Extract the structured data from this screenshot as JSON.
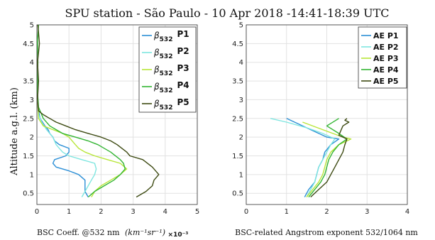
{
  "title": "SPU station - São Paulo - 10 Apr 2018 -14:41-18:39 UTC",
  "ylabel": "Altitude a.g.l.  (km)",
  "colors": {
    "P1": "#2c8fd6",
    "P2": "#7fe6e0",
    "P3": "#b8e639",
    "P4": "#33b533",
    "P5": "#3d4a12"
  },
  "chart_data": [
    {
      "type": "line",
      "xlabel": "BSC Coeff. @532 nm",
      "xlabel_units": "(km⁻¹sr⁻¹)",
      "xlabel_scale": "×10⁻³",
      "xlim": [
        0,
        5
      ],
      "ylim": [
        0.2,
        5
      ],
      "xticks": [
        "0",
        "1",
        "2",
        "3",
        "4",
        "5"
      ],
      "yticks": [
        "0.5",
        "1",
        "1.5",
        "2",
        "2.5",
        "3",
        "3.5",
        "4",
        "4.5",
        "5"
      ],
      "grid": true,
      "legend_position": "top-right",
      "series": [
        {
          "legend_symbol": "β",
          "legend_sub": "532",
          "name": "P1",
          "color_key": "P1",
          "points": [
            [
              1.6,
              0.4
            ],
            [
              1.5,
              0.55
            ],
            [
              1.5,
              0.7
            ],
            [
              1.5,
              0.85
            ],
            [
              1.3,
              1.0
            ],
            [
              1.0,
              1.1
            ],
            [
              0.6,
              1.2
            ],
            [
              0.5,
              1.3
            ],
            [
              0.55,
              1.4
            ],
            [
              0.9,
              1.5
            ],
            [
              1.0,
              1.6
            ],
            [
              1.0,
              1.7
            ],
            [
              0.7,
              1.8
            ],
            [
              0.55,
              1.9
            ],
            [
              0.5,
              2.0
            ],
            [
              0.4,
              2.1
            ],
            [
              0.35,
              2.2
            ],
            [
              0.25,
              2.3
            ],
            [
              0.1,
              2.5
            ],
            [
              0.03,
              2.8
            ],
            [
              0.02,
              3.0
            ]
          ]
        },
        {
          "legend_symbol": "β",
          "legend_sub": "532",
          "name": "P2",
          "color_key": "P2",
          "points": [
            [
              1.4,
              0.4
            ],
            [
              1.5,
              0.55
            ],
            [
              1.6,
              0.7
            ],
            [
              1.7,
              0.85
            ],
            [
              1.8,
              1.0
            ],
            [
              1.85,
              1.15
            ],
            [
              1.8,
              1.3
            ],
            [
              1.4,
              1.4
            ],
            [
              1.0,
              1.5
            ],
            [
              0.8,
              1.6
            ],
            [
              0.7,
              1.7
            ],
            [
              0.6,
              1.8
            ],
            [
              0.5,
              2.0
            ],
            [
              0.4,
              2.1
            ],
            [
              0.3,
              2.2
            ],
            [
              0.15,
              2.4
            ],
            [
              0.05,
              2.6
            ],
            [
              0.02,
              3.0
            ]
          ]
        },
        {
          "legend_symbol": "β",
          "legend_sub": "532",
          "name": "P3",
          "color_key": "P3",
          "points": [
            [
              1.7,
              0.4
            ],
            [
              1.8,
              0.55
            ],
            [
              2.0,
              0.7
            ],
            [
              2.3,
              0.85
            ],
            [
              2.6,
              1.0
            ],
            [
              2.8,
              1.15
            ],
            [
              2.6,
              1.3
            ],
            [
              2.2,
              1.4
            ],
            [
              1.8,
              1.5
            ],
            [
              1.5,
              1.6
            ],
            [
              1.3,
              1.7
            ],
            [
              1.2,
              1.8
            ],
            [
              1.1,
              1.9
            ],
            [
              1.0,
              2.0
            ],
            [
              0.8,
              2.1
            ],
            [
              0.5,
              2.2
            ],
            [
              0.2,
              2.3
            ],
            [
              0.05,
              2.5
            ],
            [
              0.02,
              3.0
            ]
          ]
        },
        {
          "legend_symbol": "β",
          "legend_sub": "532",
          "name": "P4",
          "color_key": "P4",
          "points": [
            [
              1.6,
              0.4
            ],
            [
              1.8,
              0.55
            ],
            [
              2.1,
              0.7
            ],
            [
              2.4,
              0.85
            ],
            [
              2.6,
              1.0
            ],
            [
              2.75,
              1.15
            ],
            [
              2.7,
              1.3
            ],
            [
              2.6,
              1.4
            ],
            [
              2.3,
              1.6
            ],
            [
              1.9,
              1.8
            ],
            [
              1.6,
              1.9
            ],
            [
              1.2,
              2.0
            ],
            [
              0.8,
              2.1
            ],
            [
              0.6,
              2.2
            ],
            [
              0.4,
              2.3
            ],
            [
              0.2,
              2.5
            ],
            [
              0.05,
              2.8
            ],
            [
              0.02,
              3.2
            ],
            [
              0.03,
              4.0
            ],
            [
              0.02,
              4.6
            ],
            [
              0.05,
              5.0
            ]
          ]
        },
        {
          "legend_symbol": "β",
          "legend_sub": "532",
          "name": "P5",
          "color_key": "P5",
          "points": [
            [
              3.1,
              0.4
            ],
            [
              3.4,
              0.55
            ],
            [
              3.6,
              0.7
            ],
            [
              3.65,
              0.85
            ],
            [
              3.8,
              1.0
            ],
            [
              3.6,
              1.2
            ],
            [
              3.3,
              1.4
            ],
            [
              2.9,
              1.5
            ],
            [
              2.8,
              1.6
            ],
            [
              2.5,
              1.8
            ],
            [
              2.3,
              1.9
            ],
            [
              2.0,
              2.0
            ],
            [
              1.6,
              2.1
            ],
            [
              1.2,
              2.2
            ],
            [
              0.9,
              2.3
            ],
            [
              0.6,
              2.4
            ],
            [
              0.4,
              2.5
            ],
            [
              0.2,
              2.6
            ],
            [
              0.05,
              2.7
            ],
            [
              0.02,
              3.0
            ],
            [
              0.05,
              3.5
            ],
            [
              0.02,
              4.0
            ],
            [
              0.08,
              4.5
            ],
            [
              0.03,
              5.0
            ]
          ]
        }
      ]
    },
    {
      "type": "line",
      "xlabel": "BSC-related Angstrom exponent 532/1064 nm",
      "xlim": [
        0,
        4
      ],
      "ylim": [
        0.2,
        5
      ],
      "xticks": [
        "0",
        "1",
        "2",
        "3",
        "4"
      ],
      "yticks": [
        "0.5",
        "1",
        "1.5",
        "2",
        "2.5",
        "3",
        "3.5",
        "4",
        "4.5",
        "5"
      ],
      "grid": true,
      "legend_position": "top-right",
      "series": [
        {
          "name": "AE P1",
          "color_key": "P1",
          "points": [
            [
              1.45,
              0.4
            ],
            [
              1.55,
              0.6
            ],
            [
              1.7,
              0.8
            ],
            [
              1.75,
              1.0
            ],
            [
              1.8,
              1.2
            ],
            [
              1.9,
              1.4
            ],
            [
              1.95,
              1.6
            ],
            [
              2.1,
              1.8
            ],
            [
              2.3,
              1.95
            ],
            [
              2.0,
              2.0
            ],
            [
              1.6,
              2.2
            ],
            [
              1.2,
              2.4
            ],
            [
              1.0,
              2.5
            ]
          ]
        },
        {
          "name": "AE P2",
          "color_key": "P2",
          "points": [
            [
              1.5,
              0.4
            ],
            [
              1.6,
              0.6
            ],
            [
              1.7,
              0.8
            ],
            [
              1.75,
              1.0
            ],
            [
              1.8,
              1.2
            ],
            [
              1.9,
              1.4
            ],
            [
              2.0,
              1.6
            ],
            [
              2.1,
              1.8
            ],
            [
              2.2,
              1.95
            ],
            [
              1.9,
              2.1
            ],
            [
              1.5,
              2.25
            ],
            [
              1.0,
              2.4
            ],
            [
              0.6,
              2.5
            ]
          ]
        },
        {
          "name": "AE P3",
          "color_key": "P3",
          "points": [
            [
              1.5,
              0.4
            ],
            [
              1.65,
              0.6
            ],
            [
              1.8,
              0.8
            ],
            [
              1.9,
              1.0
            ],
            [
              1.95,
              1.2
            ],
            [
              2.0,
              1.4
            ],
            [
              2.1,
              1.6
            ],
            [
              2.3,
              1.8
            ],
            [
              2.6,
              1.95
            ],
            [
              2.4,
              2.0
            ],
            [
              1.9,
              2.2
            ],
            [
              1.4,
              2.4
            ]
          ]
        },
        {
          "name": "AE P4",
          "color_key": "P4",
          "points": [
            [
              1.55,
              0.4
            ],
            [
              1.7,
              0.6
            ],
            [
              1.85,
              0.8
            ],
            [
              1.95,
              1.0
            ],
            [
              2.0,
              1.2
            ],
            [
              2.05,
              1.4
            ],
            [
              2.15,
              1.6
            ],
            [
              2.3,
              1.8
            ],
            [
              2.5,
              1.95
            ],
            [
              2.3,
              2.1
            ],
            [
              2.0,
              2.3
            ],
            [
              2.3,
              2.5
            ]
          ]
        },
        {
          "name": "AE P5",
          "color_key": "P5",
          "points": [
            [
              1.6,
              0.4
            ],
            [
              1.8,
              0.6
            ],
            [
              2.0,
              0.8
            ],
            [
              2.1,
              1.0
            ],
            [
              2.2,
              1.2
            ],
            [
              2.3,
              1.4
            ],
            [
              2.4,
              1.6
            ],
            [
              2.45,
              1.8
            ],
            [
              2.5,
              1.95
            ],
            [
              2.3,
              2.05
            ],
            [
              2.4,
              2.3
            ],
            [
              2.55,
              2.4
            ],
            [
              2.45,
              2.45
            ],
            [
              2.5,
              2.5
            ]
          ]
        }
      ]
    }
  ]
}
